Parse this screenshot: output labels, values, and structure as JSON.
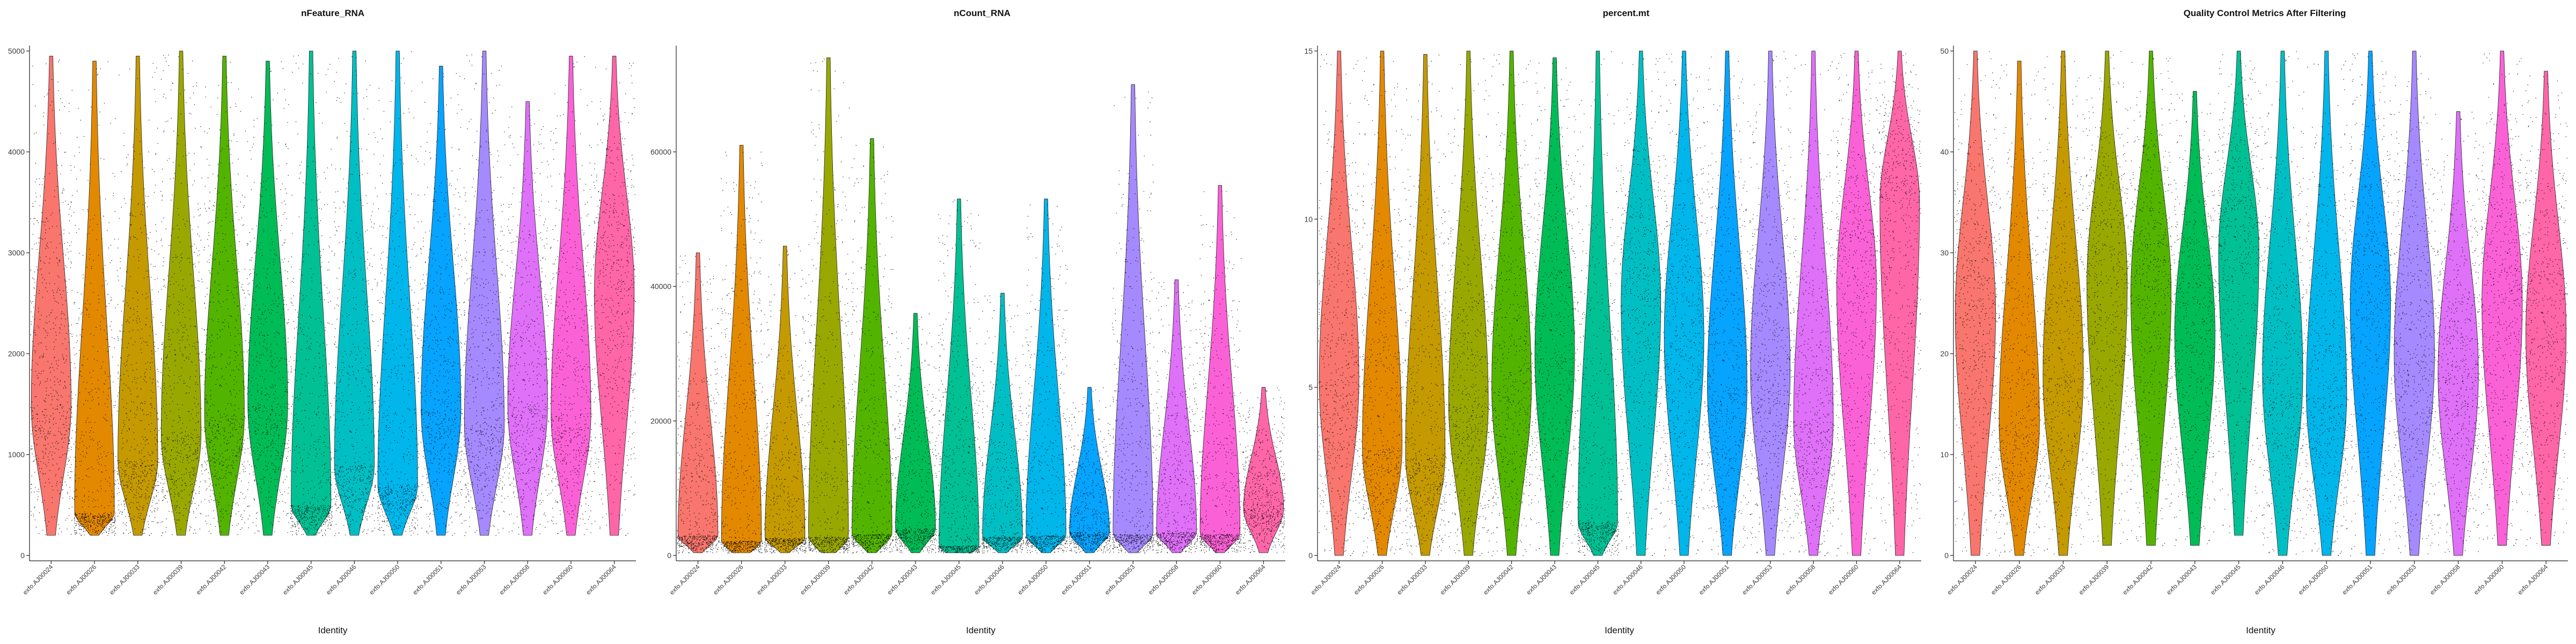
{
  "categories": [
    "exfo.AJ00024",
    "exfo.AJ00026",
    "exfo.AJ00033",
    "exfo.AJ00039",
    "exfo.AJ00042",
    "exfo.AJ00043",
    "exfo.AJ00045",
    "exfo.AJ00046",
    "exfo.AJ00050",
    "exfo.AJ00051",
    "exfo.AJ00053",
    "exfo.AJ00058",
    "exfo.AJ00060",
    "exfo.AJ00064"
  ],
  "colors": [
    "#F8766D",
    "#E38900",
    "#C49A00",
    "#99A800",
    "#53B400",
    "#00BC56",
    "#00C094",
    "#00BFC4",
    "#00B6EB",
    "#06A4FF",
    "#A58AFF",
    "#DF70F8",
    "#FB61D7",
    "#FF66A8"
  ],
  "chart_data": [
    {
      "type": "violin",
      "title": "nFeature_RNA",
      "xlabel": "Identity",
      "ylabel": "",
      "ylim": [
        0,
        5000
      ],
      "yticks": [
        0,
        1000,
        2000,
        3000,
        4000,
        5000
      ],
      "series": [
        {
          "category": "exfo.AJ00024",
          "min": 200,
          "max": 4950,
          "median": 1500
        },
        {
          "category": "exfo.AJ00026",
          "min": 200,
          "max": 4900,
          "median": 420
        },
        {
          "category": "exfo.AJ00033",
          "min": 200,
          "max": 4950,
          "median": 950
        },
        {
          "category": "exfo.AJ00039",
          "min": 200,
          "max": 5000,
          "median": 1200
        },
        {
          "category": "exfo.AJ00042",
          "min": 200,
          "max": 4950,
          "median": 1400
        },
        {
          "category": "exfo.AJ00043",
          "min": 200,
          "max": 4900,
          "median": 1500
        },
        {
          "category": "exfo.AJ00045",
          "min": 200,
          "max": 5000,
          "median": 500
        },
        {
          "category": "exfo.AJ00046",
          "min": 200,
          "max": 5000,
          "median": 900
        },
        {
          "category": "exfo.AJ00050",
          "min": 200,
          "max": 5000,
          "median": 700
        },
        {
          "category": "exfo.AJ00051",
          "min": 200,
          "max": 4850,
          "median": 1450
        },
        {
          "category": "exfo.AJ00053",
          "min": 200,
          "max": 5000,
          "median": 1300
        },
        {
          "category": "exfo.AJ00058",
          "min": 200,
          "max": 4500,
          "median": 1500
        },
        {
          "category": "exfo.AJ00060",
          "min": 200,
          "max": 4950,
          "median": 1400
        },
        {
          "category": "exfo.AJ00064",
          "min": 200,
          "max": 4950,
          "median": 2600
        }
      ]
    },
    {
      "type": "violin",
      "title": "nCount_RNA",
      "xlabel": "Identity",
      "ylabel": "",
      "ylim": [
        0,
        75000
      ],
      "yticks": [
        0,
        20000,
        40000,
        60000
      ],
      "series": [
        {
          "category": "exfo.AJ00024",
          "min": 400,
          "max": 45000,
          "median": 3000
        },
        {
          "category": "exfo.AJ00026",
          "min": 400,
          "max": 61000,
          "median": 2200
        },
        {
          "category": "exfo.AJ00033",
          "min": 400,
          "max": 46000,
          "median": 2600
        },
        {
          "category": "exfo.AJ00039",
          "min": 400,
          "max": 74000,
          "median": 2800
        },
        {
          "category": "exfo.AJ00042",
          "min": 400,
          "max": 62000,
          "median": 3200
        },
        {
          "category": "exfo.AJ00043",
          "min": 400,
          "max": 36000,
          "median": 4000
        },
        {
          "category": "exfo.AJ00045",
          "min": 400,
          "max": 53000,
          "median": 1500
        },
        {
          "category": "exfo.AJ00046",
          "min": 400,
          "max": 39000,
          "median": 2800
        },
        {
          "category": "exfo.AJ00050",
          "min": 400,
          "max": 53000,
          "median": 3000
        },
        {
          "category": "exfo.AJ00051",
          "min": 400,
          "max": 25000,
          "median": 3500
        },
        {
          "category": "exfo.AJ00053",
          "min": 400,
          "max": 70000,
          "median": 3200
        },
        {
          "category": "exfo.AJ00058",
          "min": 400,
          "max": 41000,
          "median": 3500
        },
        {
          "category": "exfo.AJ00060",
          "min": 400,
          "max": 55000,
          "median": 3200
        },
        {
          "category": "exfo.AJ00064",
          "min": 400,
          "max": 25000,
          "median": 7000
        }
      ]
    },
    {
      "type": "violin",
      "title": "percent.mt",
      "xlabel": "Identity",
      "ylabel": "",
      "ylim": [
        0,
        15
      ],
      "yticks": [
        0,
        5,
        10,
        15
      ],
      "series": [
        {
          "category": "exfo.AJ00024",
          "min": 0,
          "max": 15,
          "median": 5.2
        },
        {
          "category": "exfo.AJ00026",
          "min": 0,
          "max": 15,
          "median": 3.2
        },
        {
          "category": "exfo.AJ00033",
          "min": 0,
          "max": 14.9,
          "median": 3.0
        },
        {
          "category": "exfo.AJ00039",
          "min": 0,
          "max": 15,
          "median": 4.5
        },
        {
          "category": "exfo.AJ00042",
          "min": 0,
          "max": 15,
          "median": 5.0
        },
        {
          "category": "exfo.AJ00043",
          "min": 0,
          "max": 14.8,
          "median": 6.0
        },
        {
          "category": "exfo.AJ00045",
          "min": 0,
          "max": 15,
          "median": 1.0
        },
        {
          "category": "exfo.AJ00046",
          "min": 0,
          "max": 15,
          "median": 7.5
        },
        {
          "category": "exfo.AJ00050",
          "min": 0,
          "max": 15,
          "median": 6.5
        },
        {
          "category": "exfo.AJ00051",
          "min": 0,
          "max": 15,
          "median": 5.0
        },
        {
          "category": "exfo.AJ00053",
          "min": 0,
          "max": 15,
          "median": 5.5
        },
        {
          "category": "exfo.AJ00058",
          "min": 0,
          "max": 15,
          "median": 4.0
        },
        {
          "category": "exfo.AJ00060",
          "min": 0,
          "max": 15,
          "median": 8.0
        },
        {
          "category": "exfo.AJ00064",
          "min": 0,
          "max": 15,
          "median": 10.5
        }
      ]
    },
    {
      "type": "violin",
      "title": "Quality Control Metrics After Filtering",
      "xlabel": "Identity",
      "ylabel": "",
      "ylim": [
        0,
        50
      ],
      "yticks": [
        0,
        10,
        20,
        30,
        40,
        50
      ],
      "series": [
        {
          "category": "exfo.AJ00024",
          "min": 0,
          "max": 50,
          "median": 24
        },
        {
          "category": "exfo.AJ00026",
          "min": 0,
          "max": 49,
          "median": 13
        },
        {
          "category": "exfo.AJ00033",
          "min": 0,
          "max": 50,
          "median": 18
        },
        {
          "category": "exfo.AJ00039",
          "min": 1,
          "max": 50,
          "median": 27
        },
        {
          "category": "exfo.AJ00042",
          "min": 1,
          "max": 50,
          "median": 26
        },
        {
          "category": "exfo.AJ00043",
          "min": 1,
          "max": 46,
          "median": 22
        },
        {
          "category": "exfo.AJ00045",
          "min": 2,
          "max": 50,
          "median": 30
        },
        {
          "category": "exfo.AJ00046",
          "min": 0,
          "max": 50,
          "median": 18
        },
        {
          "category": "exfo.AJ00050",
          "min": 0,
          "max": 50,
          "median": 16
        },
        {
          "category": "exfo.AJ00051",
          "min": 0,
          "max": 50,
          "median": 25
        },
        {
          "category": "exfo.AJ00053",
          "min": 0,
          "max": 50,
          "median": 20
        },
        {
          "category": "exfo.AJ00058",
          "min": 0,
          "max": 44,
          "median": 18
        },
        {
          "category": "exfo.AJ00060",
          "min": 1,
          "max": 50,
          "median": 25
        },
        {
          "category": "exfo.AJ00064",
          "min": 1,
          "max": 48,
          "median": 22
        }
      ]
    }
  ]
}
